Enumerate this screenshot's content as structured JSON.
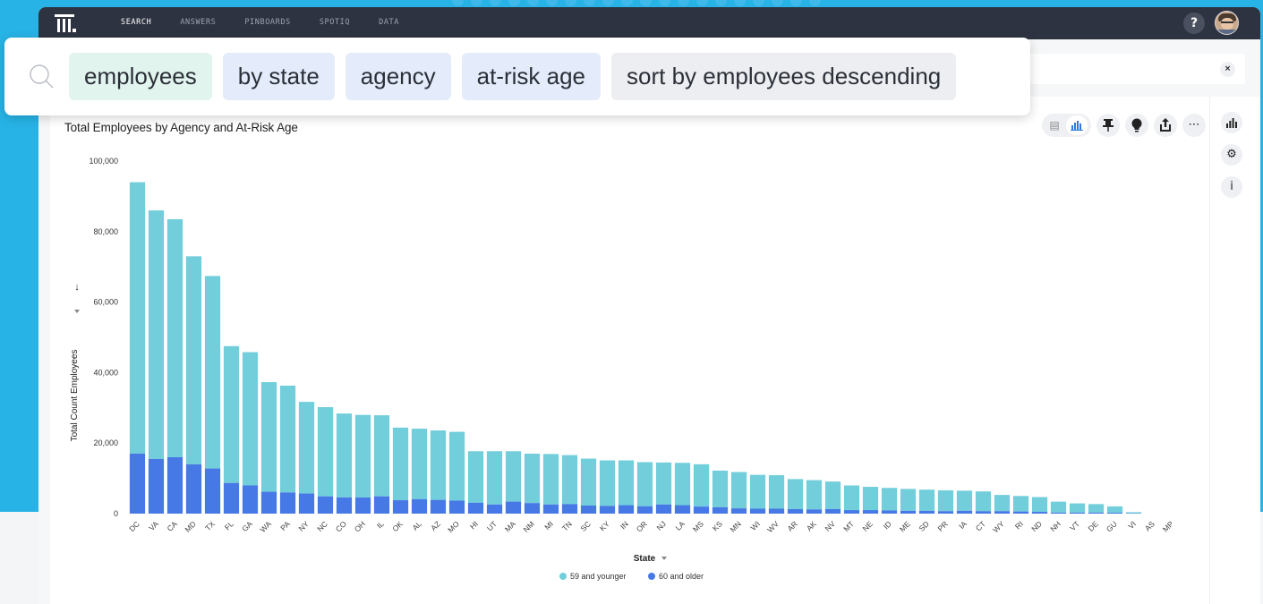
{
  "nav": {
    "items": [
      "SEARCH",
      "ANSWERS",
      "PINBOARDS",
      "SPOTIQ",
      "DATA"
    ],
    "help_label": "?"
  },
  "search": {
    "tokens": [
      {
        "text": "employees",
        "kind": "measure"
      },
      {
        "text": "by state",
        "kind": "attr"
      },
      {
        "text": "agency",
        "kind": "attr"
      },
      {
        "text": "at-risk age",
        "kind": "attr"
      },
      {
        "text": "sort by employees descending",
        "kind": "kw"
      }
    ],
    "clear_label": "×"
  },
  "toolbar": {
    "icons": [
      "table-view-icon",
      "chart-view-icon",
      "pin-icon",
      "insight-bulb-icon",
      "share-icon",
      "more-icon"
    ],
    "glyphs": {
      "table": "▤",
      "chart": "📊",
      "pin": "📌",
      "bulb": "●",
      "share": "⇧",
      "more": "⋯"
    }
  },
  "side": {
    "glyphs": {
      "chart_type": "📊",
      "settings": "⚙",
      "info": "i"
    }
  },
  "colors": {
    "young": "#71ceda",
    "old": "#4679e5",
    "nav_bg": "#2e3341",
    "page_bg": "#27b3e6"
  },
  "chart_data": {
    "type": "bar",
    "stacked": true,
    "title": "Total Employees by Agency and At-Risk Age",
    "xlabel": "State",
    "ylabel": "Total Count Employees",
    "ylim": [
      0,
      100000
    ],
    "yticks": [
      0,
      20000,
      40000,
      60000,
      80000,
      100000
    ],
    "ytick_labels": [
      "0",
      "20,000",
      "40,000",
      "60,000",
      "80,000",
      "100,000"
    ],
    "grid": false,
    "legend_position": "bottom-center",
    "categories": [
      "DC",
      "VA",
      "CA",
      "MD",
      "TX",
      "FL",
      "GA",
      "WA",
      "PA",
      "NY",
      "NC",
      "CO",
      "OH",
      "IL",
      "OK",
      "AL",
      "AZ",
      "MO",
      "HI",
      "UT",
      "MA",
      "NM",
      "MI",
      "TN",
      "SC",
      "KY",
      "IN",
      "OR",
      "NJ",
      "LA",
      "MS",
      "KS",
      "MN",
      "WI",
      "WV",
      "AR",
      "AK",
      "NV",
      "MT",
      "NE",
      "ID",
      "ME",
      "SD",
      "PR",
      "IA",
      "CT",
      "WY",
      "RI",
      "ND",
      "NH",
      "VT",
      "DE",
      "GU",
      "VI",
      "AS",
      "MP"
    ],
    "series": [
      {
        "name": "60 and older",
        "values": [
          17000,
          15500,
          16000,
          14000,
          12800,
          8700,
          8000,
          6200,
          6000,
          5700,
          4900,
          4600,
          4600,
          4900,
          3800,
          4100,
          3900,
          3700,
          3100,
          2600,
          3400,
          3000,
          2600,
          2700,
          2300,
          2200,
          2400,
          2100,
          2600,
          2400,
          2000,
          1800,
          1500,
          1400,
          1400,
          1300,
          1200,
          1300,
          1000,
          1000,
          900,
          800,
          800,
          700,
          800,
          700,
          700,
          600,
          500,
          300,
          300,
          300,
          250,
          100,
          0,
          0
        ]
      },
      {
        "name": "59 and younger",
        "values": [
          77000,
          70500,
          67500,
          59000,
          54600,
          38800,
          37800,
          31100,
          30300,
          26000,
          25300,
          23800,
          23400,
          23000,
          20600,
          20000,
          19700,
          19500,
          14600,
          15100,
          14300,
          14000,
          14300,
          13900,
          13300,
          12900,
          12700,
          12500,
          11900,
          12000,
          12000,
          10400,
          10300,
          9600,
          9500,
          8500,
          8300,
          7800,
          7000,
          6600,
          6400,
          6200,
          6000,
          5900,
          5700,
          5600,
          4600,
          4400,
          4200,
          3100,
          2600,
          2400,
          1800,
          300,
          0,
          0
        ]
      }
    ]
  }
}
